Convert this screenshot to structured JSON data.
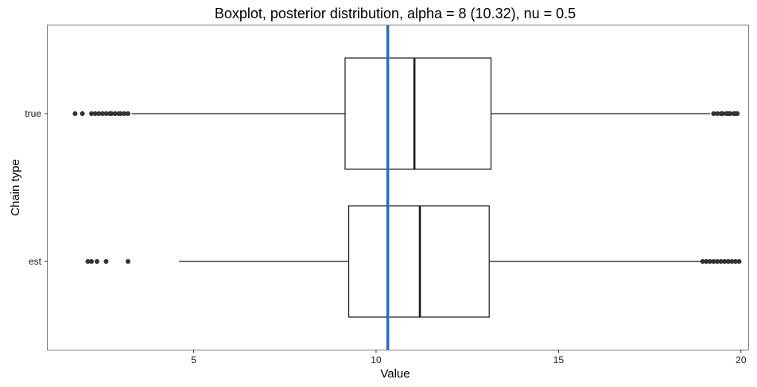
{
  "chart_data": {
    "type": "boxplot",
    "orientation": "horizontal",
    "title": "Boxplot, posterior distribution, alpha = 8 (10.32), nu = 0.5",
    "xlabel": "Value",
    "ylabel": "Chain type",
    "xlim": [
      1,
      20.2
    ],
    "x_ticks": [
      5,
      10,
      15,
      20
    ],
    "grid": false,
    "reference_line": {
      "x": 10.32,
      "color": "#1f6fd1"
    },
    "categories": [
      "true",
      "est"
    ],
    "boxes": [
      {
        "category": "true",
        "whisker_low": 3.3,
        "q1": 9.15,
        "median": 11.05,
        "q3": 13.15,
        "whisker_high": 19.15,
        "outliers": [
          1.75,
          1.95,
          2.2,
          2.3,
          2.4,
          2.5,
          2.6,
          2.7,
          2.75,
          2.85,
          2.95,
          3.0,
          3.1,
          3.2,
          19.25,
          19.35,
          19.45,
          19.5,
          19.6,
          19.65,
          19.7,
          19.8,
          19.85,
          19.9
        ]
      },
      {
        "category": "est",
        "whisker_low": 4.6,
        "q1": 9.25,
        "median": 11.2,
        "q3": 13.1,
        "whisker_high": 18.9,
        "outliers": [
          2.1,
          2.2,
          2.35,
          2.6,
          3.2,
          18.95,
          19.05,
          19.15,
          19.25,
          19.35,
          19.45,
          19.55,
          19.65,
          19.75,
          19.85,
          19.95
        ]
      }
    ],
    "colors": {
      "box_stroke": "#1a1a1a",
      "outlier": "#333333",
      "panel_border": "#7f7f7f"
    }
  }
}
